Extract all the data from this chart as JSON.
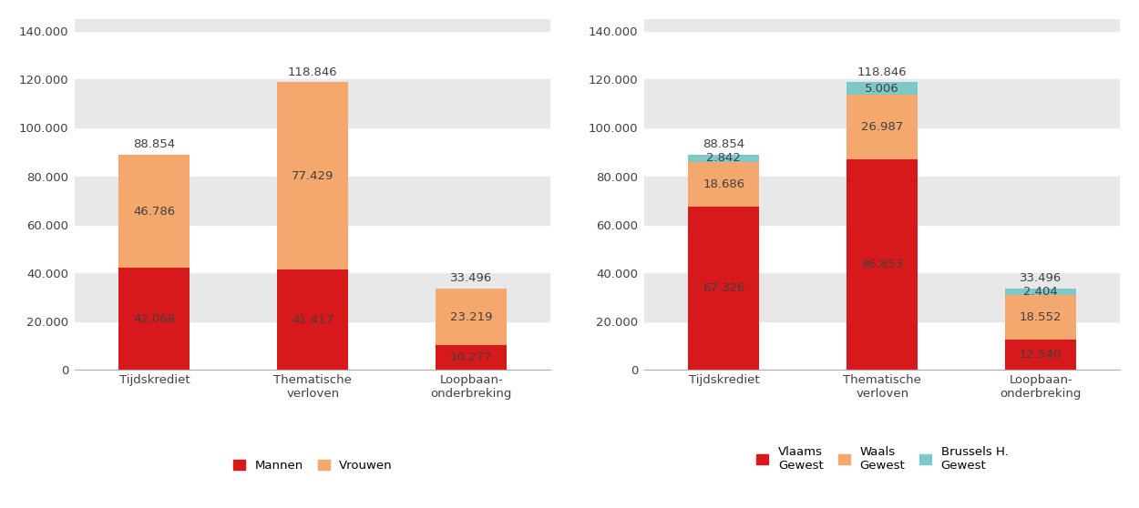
{
  "categories": [
    "Tijdskrediet",
    "Thematische\nverloven",
    "Loopbaan-\nonderbreking"
  ],
  "chart1": {
    "mannen": [
      42068,
      41417,
      10277
    ],
    "vrouwen": [
      46786,
      77429,
      23219
    ],
    "totals": [
      88854,
      118846,
      33496
    ],
    "color_mannen": "#d7191c",
    "color_vrouwen": "#f5a86e",
    "legend_labels": [
      "Mannen",
      "Vrouwen"
    ]
  },
  "chart2": {
    "vlaams": [
      67326,
      86853,
      12540
    ],
    "waals": [
      18686,
      26987,
      18552
    ],
    "brussels": [
      2842,
      5006,
      2404
    ],
    "totals": [
      88854,
      118846,
      33496
    ],
    "color_vlaams": "#d7191c",
    "color_waals": "#f5a86e",
    "color_brussels": "#7ec8c8",
    "legend_labels": [
      "Vlaams\nGewest",
      "Waals\nGewest",
      "Brussels H.\nGewest"
    ]
  },
  "ylim": [
    0,
    145000
  ],
  "yticks": [
    0,
    20000,
    40000,
    60000,
    80000,
    100000,
    120000,
    140000
  ],
  "ytick_labels": [
    "0",
    "20.000",
    "40.000",
    "60.000",
    "80.000",
    "100.000",
    "120.000",
    "140.000"
  ],
  "bar_width": 0.45,
  "background_color": "#ffffff",
  "band_color": "#e8e8e8",
  "text_color": "#404040",
  "label_fontsize": 9.5,
  "tick_fontsize": 9.5,
  "legend_fontsize": 9.5
}
